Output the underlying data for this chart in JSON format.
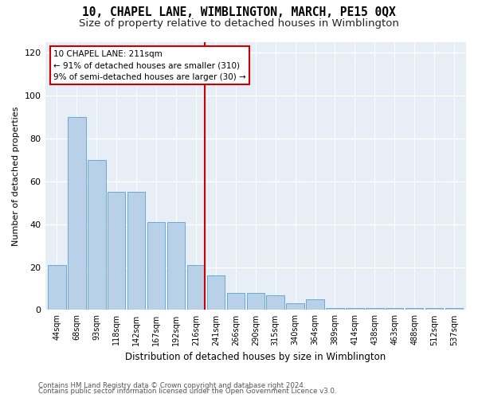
{
  "title": "10, CHAPEL LANE, WIMBLINGTON, MARCH, PE15 0QX",
  "subtitle": "Size of property relative to detached houses in Wimblington",
  "xlabel": "Distribution of detached houses by size in Wimblington",
  "ylabel": "Number of detached properties",
  "categories": [
    "44sqm",
    "68sqm",
    "93sqm",
    "118sqm",
    "142sqm",
    "167sqm",
    "192sqm",
    "216sqm",
    "241sqm",
    "266sqm",
    "290sqm",
    "315sqm",
    "340sqm",
    "364sqm",
    "389sqm",
    "414sqm",
    "438sqm",
    "463sqm",
    "488sqm",
    "512sqm",
    "537sqm"
  ],
  "values": [
    21,
    90,
    70,
    55,
    55,
    41,
    41,
    21,
    16,
    8,
    8,
    7,
    3,
    5,
    1,
    1,
    1,
    1,
    1,
    1,
    1
  ],
  "bar_color": "#b8d0e8",
  "bar_edge_color": "#6aaad4",
  "highlight_bin": 7,
  "highlight_label": "10 CHAPEL LANE: 211sqm",
  "highlight_text1": "← 91% of detached houses are smaller (310)",
  "highlight_text2": "9% of semi-detached houses are larger (30) →",
  "annotation_box_color": "#ffffff",
  "annotation_box_edge": "#cc0000",
  "vline_color": "#cc0000",
  "ylim": [
    0,
    125
  ],
  "yticks": [
    0,
    20,
    40,
    60,
    80,
    100,
    120
  ],
  "footer1": "Contains HM Land Registry data © Crown copyright and database right 2024.",
  "footer2": "Contains public sector information licensed under the Open Government Licence v3.0.",
  "bg_color": "#ffffff",
  "plot_bg_color": "#e8eef5",
  "title_fontsize": 10.5,
  "subtitle_fontsize": 9.5
}
